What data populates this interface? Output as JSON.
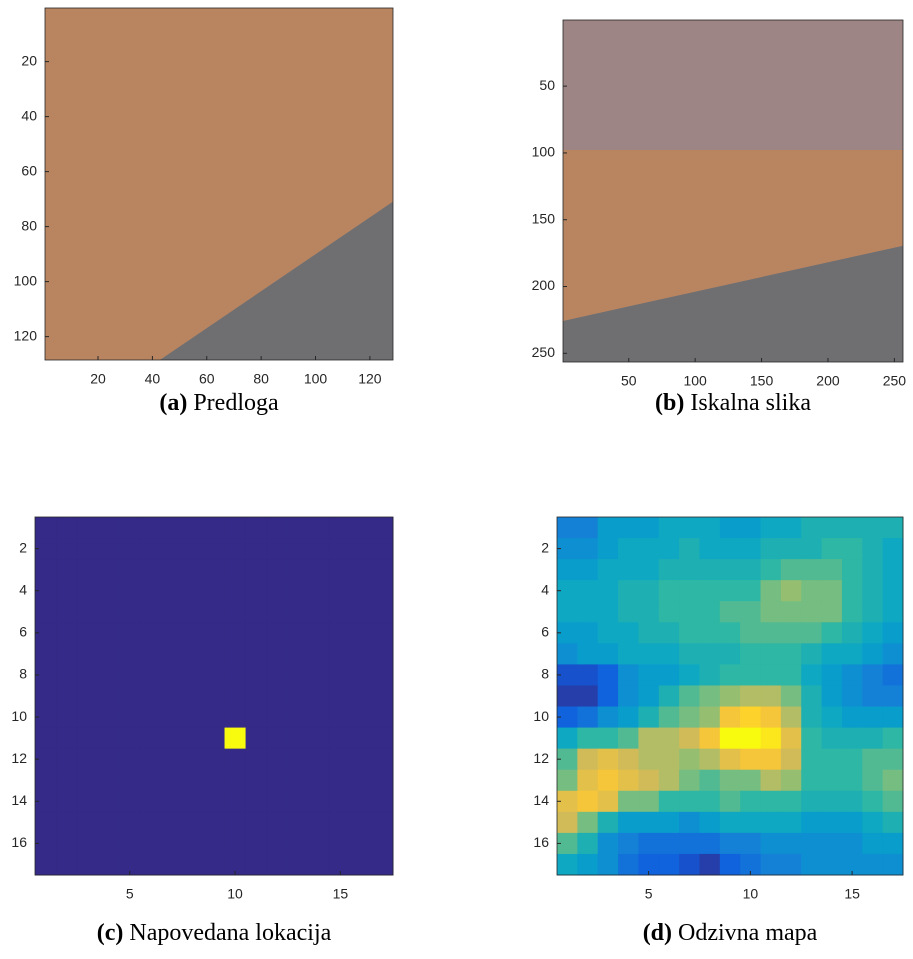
{
  "chart_data": [
    {
      "type": "image",
      "label": "(a)",
      "caption": "Predloga",
      "xlim": [
        0.5,
        128.5
      ],
      "ylim": [
        128.5,
        0.5
      ],
      "xticks": [
        20,
        40,
        60,
        80,
        100,
        120
      ],
      "yticks": [
        20,
        40,
        60,
        80,
        100,
        120
      ]
    },
    {
      "type": "image",
      "label": "(b)",
      "caption": "Iskalna slika",
      "xlim": [
        0.5,
        256.5
      ],
      "ylim": [
        256.5,
        0.5
      ],
      "xticks": [
        50,
        100,
        150,
        200,
        250
      ],
      "yticks": [
        50,
        100,
        150,
        200,
        250
      ]
    },
    {
      "type": "heatmap",
      "label": "(c)",
      "caption": "Napovedana lokacija",
      "colormap": "parula",
      "xlim": [
        0.5,
        17.5
      ],
      "ylim": [
        17.5,
        0.5
      ],
      "xticks": [
        5,
        10,
        15
      ],
      "yticks": [
        2,
        4,
        6,
        8,
        10,
        12,
        14,
        16
      ],
      "values": [
        [
          0,
          0,
          0,
          0,
          0,
          0,
          0,
          0,
          0,
          0,
          0,
          0,
          0,
          0,
          0,
          0,
          0
        ],
        [
          0,
          0,
          0,
          0,
          0,
          0,
          0,
          0,
          0,
          0,
          0,
          0,
          0,
          0,
          0,
          0,
          0
        ],
        [
          0,
          0,
          0,
          0,
          0,
          0,
          0,
          0,
          0,
          0,
          0,
          0,
          0,
          0,
          0,
          0,
          0
        ],
        [
          0,
          0,
          0,
          0,
          0,
          0,
          0,
          0,
          0,
          0,
          0,
          0,
          0,
          0,
          0,
          0,
          0
        ],
        [
          0,
          0,
          0,
          0,
          0,
          0,
          0,
          0,
          0,
          0,
          0,
          0,
          0,
          0,
          0,
          0,
          0
        ],
        [
          0,
          0,
          0,
          0,
          0,
          0,
          0,
          0,
          0,
          0,
          0,
          0,
          0,
          0,
          0,
          0,
          0
        ],
        [
          0,
          0,
          0,
          0,
          0,
          0,
          0,
          0,
          0,
          0,
          0,
          0,
          0,
          0,
          0,
          0,
          0
        ],
        [
          0,
          0,
          0,
          0,
          0,
          0,
          0,
          0,
          0,
          0,
          0,
          0,
          0,
          0,
          0,
          0,
          0
        ],
        [
          0,
          0,
          0,
          0,
          0,
          0,
          0,
          0,
          0,
          0,
          0,
          0,
          0,
          0,
          0,
          0,
          0
        ],
        [
          0,
          0,
          0,
          0,
          0,
          0,
          0,
          0,
          0,
          0,
          0,
          0,
          0,
          0,
          0,
          0,
          0
        ],
        [
          0,
          0,
          0,
          0,
          0,
          0,
          0,
          0,
          0,
          1,
          0,
          0,
          0,
          0,
          0,
          0,
          0
        ],
        [
          0,
          0,
          0,
          0,
          0,
          0,
          0,
          0,
          0,
          0,
          0,
          0,
          0,
          0,
          0,
          0,
          0
        ],
        [
          0,
          0,
          0,
          0,
          0,
          0,
          0,
          0,
          0,
          0,
          0,
          0,
          0,
          0,
          0,
          0,
          0
        ],
        [
          0,
          0,
          0,
          0,
          0,
          0,
          0,
          0,
          0,
          0,
          0,
          0,
          0,
          0,
          0,
          0,
          0
        ],
        [
          0,
          0,
          0,
          0,
          0,
          0,
          0,
          0,
          0,
          0,
          0,
          0,
          0,
          0,
          0,
          0,
          0
        ],
        [
          0,
          0,
          0,
          0,
          0,
          0,
          0,
          0,
          0,
          0,
          0,
          0,
          0,
          0,
          0,
          0,
          0
        ],
        [
          0,
          0,
          0,
          0,
          0,
          0,
          0,
          0,
          0,
          0,
          0,
          0,
          0,
          0,
          0,
          0,
          0
        ]
      ]
    },
    {
      "type": "heatmap",
      "label": "(d)",
      "caption": "Odzivna mapa",
      "colormap": "parula",
      "xlim": [
        0.5,
        17.5
      ],
      "ylim": [
        17.5,
        0.5
      ],
      "xticks": [
        5,
        10,
        15
      ],
      "yticks": [
        2,
        4,
        6,
        8,
        10,
        12,
        14,
        16
      ],
      "values": [
        [
          0.25,
          0.25,
          0.35,
          0.35,
          0.35,
          0.4,
          0.4,
          0.4,
          0.35,
          0.35,
          0.4,
          0.4,
          0.45,
          0.45,
          0.45,
          0.45,
          0.45
        ],
        [
          0.3,
          0.3,
          0.35,
          0.4,
          0.4,
          0.4,
          0.45,
          0.4,
          0.4,
          0.4,
          0.45,
          0.45,
          0.45,
          0.5,
          0.5,
          0.45,
          0.4
        ],
        [
          0.35,
          0.35,
          0.4,
          0.4,
          0.4,
          0.45,
          0.45,
          0.45,
          0.45,
          0.45,
          0.5,
          0.55,
          0.55,
          0.55,
          0.5,
          0.45,
          0.4
        ],
        [
          0.4,
          0.4,
          0.4,
          0.45,
          0.45,
          0.5,
          0.5,
          0.5,
          0.5,
          0.5,
          0.6,
          0.65,
          0.6,
          0.6,
          0.5,
          0.45,
          0.4
        ],
        [
          0.4,
          0.4,
          0.4,
          0.45,
          0.45,
          0.5,
          0.5,
          0.5,
          0.55,
          0.55,
          0.6,
          0.6,
          0.6,
          0.6,
          0.5,
          0.45,
          0.4
        ],
        [
          0.35,
          0.35,
          0.4,
          0.4,
          0.45,
          0.45,
          0.5,
          0.5,
          0.5,
          0.55,
          0.55,
          0.55,
          0.55,
          0.5,
          0.45,
          0.4,
          0.35
        ],
        [
          0.3,
          0.35,
          0.35,
          0.4,
          0.4,
          0.4,
          0.45,
          0.45,
          0.45,
          0.5,
          0.5,
          0.5,
          0.45,
          0.4,
          0.4,
          0.35,
          0.3
        ],
        [
          0.1,
          0.1,
          0.15,
          0.3,
          0.35,
          0.35,
          0.4,
          0.45,
          0.5,
          0.5,
          0.5,
          0.5,
          0.4,
          0.35,
          0.3,
          0.25,
          0.2
        ],
        [
          0.05,
          0.05,
          0.15,
          0.3,
          0.35,
          0.45,
          0.55,
          0.6,
          0.65,
          0.7,
          0.7,
          0.6,
          0.45,
          0.35,
          0.3,
          0.25,
          0.25
        ],
        [
          0.15,
          0.2,
          0.3,
          0.35,
          0.45,
          0.55,
          0.6,
          0.65,
          0.85,
          0.9,
          0.85,
          0.7,
          0.45,
          0.4,
          0.35,
          0.35,
          0.35
        ],
        [
          0.4,
          0.5,
          0.5,
          0.55,
          0.7,
          0.7,
          0.75,
          0.85,
          1.0,
          1.0,
          0.95,
          0.8,
          0.5,
          0.45,
          0.45,
          0.45,
          0.5
        ],
        [
          0.55,
          0.75,
          0.8,
          0.75,
          0.7,
          0.7,
          0.65,
          0.7,
          0.8,
          0.85,
          0.85,
          0.75,
          0.5,
          0.5,
          0.5,
          0.55,
          0.55
        ],
        [
          0.6,
          0.8,
          0.85,
          0.8,
          0.75,
          0.7,
          0.6,
          0.55,
          0.6,
          0.6,
          0.7,
          0.65,
          0.5,
          0.5,
          0.5,
          0.55,
          0.6
        ],
        [
          0.8,
          0.85,
          0.8,
          0.6,
          0.6,
          0.5,
          0.5,
          0.5,
          0.55,
          0.5,
          0.5,
          0.5,
          0.45,
          0.45,
          0.45,
          0.5,
          0.55
        ],
        [
          0.75,
          0.6,
          0.45,
          0.35,
          0.35,
          0.35,
          0.3,
          0.35,
          0.4,
          0.4,
          0.4,
          0.4,
          0.35,
          0.35,
          0.35,
          0.4,
          0.45
        ],
        [
          0.55,
          0.45,
          0.3,
          0.25,
          0.2,
          0.2,
          0.2,
          0.2,
          0.25,
          0.25,
          0.3,
          0.3,
          0.3,
          0.3,
          0.3,
          0.35,
          0.35
        ],
        [
          0.4,
          0.35,
          0.3,
          0.2,
          0.15,
          0.15,
          0.1,
          0.05,
          0.15,
          0.2,
          0.25,
          0.25,
          0.3,
          0.3,
          0.3,
          0.3,
          0.3
        ]
      ]
    }
  ]
}
